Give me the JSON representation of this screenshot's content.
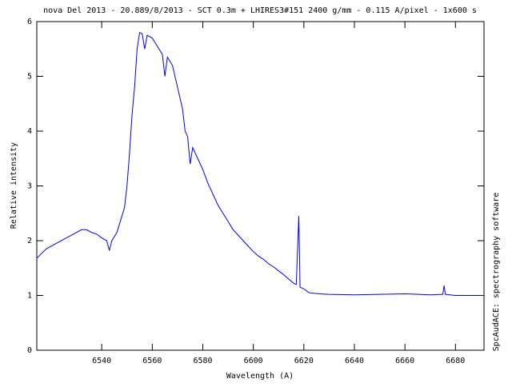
{
  "chart_data": {
    "type": "line",
    "title": "nova Del 2013 - 20.889/8/2013 - SCT 0.3m + LHIRES3#151 2400 g/mm - 0.115 A/pixel - 1x600 s",
    "x_label": "Wavelength (A)",
    "y_label": "Relative intensity",
    "annotation": "SpcAudACE: spectrography software",
    "x": [
      6514.3,
      6518,
      6522,
      6526,
      6528,
      6530,
      6532,
      6534,
      6536,
      6538,
      6540,
      6542,
      6543,
      6544,
      6546,
      6548,
      6549,
      6550,
      6551,
      6552,
      6553,
      6554,
      6555,
      6556,
      6557,
      6558,
      6560,
      6562,
      6564,
      6565,
      6566,
      6568,
      6570,
      6572,
      6573,
      6574,
      6575,
      6576,
      6578,
      6580,
      6582,
      6584,
      6586,
      6588,
      6590,
      6592,
      6594,
      6596,
      6598,
      6600,
      6602,
      6604,
      6606,
      6608,
      6610,
      6612,
      6614,
      6616,
      6617,
      6618,
      6618.5,
      6620,
      6622,
      6626,
      6630,
      6640,
      6650,
      6660,
      6670,
      6675,
      6675.5,
      6676,
      6680,
      6685,
      6691.3
    ],
    "series": [
      {
        "name": "spectrum",
        "color": "#0000ee",
        "values": [
          1.68,
          1.85,
          1.95,
          2.05,
          2.1,
          2.15,
          2.2,
          2.2,
          2.15,
          2.12,
          2.05,
          2.0,
          1.82,
          2.0,
          2.15,
          2.45,
          2.6,
          3.0,
          3.6,
          4.3,
          4.8,
          5.5,
          5.8,
          5.78,
          5.5,
          5.75,
          5.7,
          5.55,
          5.4,
          5.0,
          5.35,
          5.2,
          4.8,
          4.4,
          4.0,
          3.9,
          3.4,
          3.7,
          3.5,
          3.3,
          3.05,
          2.85,
          2.65,
          2.5,
          2.35,
          2.2,
          2.1,
          2.0,
          1.9,
          1.8,
          1.72,
          1.66,
          1.58,
          1.52,
          1.45,
          1.38,
          1.3,
          1.22,
          1.2,
          2.45,
          1.15,
          1.12,
          1.05,
          1.03,
          1.02,
          1.01,
          1.02,
          1.03,
          1.01,
          1.02,
          1.18,
          1.02,
          1.0,
          1.0,
          1.0
        ]
      }
    ],
    "xlim": [
      6514.3,
      6691.3
    ],
    "ylim": [
      0,
      6
    ],
    "xticks": [
      6540,
      6560,
      6580,
      6600,
      6620,
      6640,
      6660,
      6680
    ],
    "yticks": [
      0,
      1,
      2,
      3,
      4,
      5,
      6
    ]
  }
}
